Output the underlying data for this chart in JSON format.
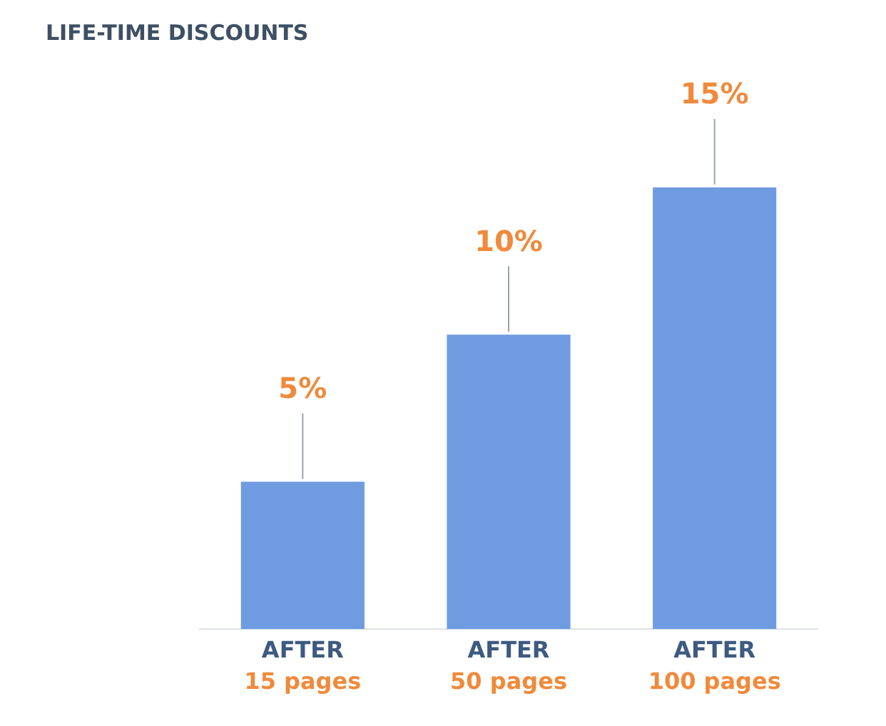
{
  "chart_data": {
    "type": "bar",
    "title": "LIFE-TIME DISCOUNTS",
    "categories": [
      "AFTER\n15 pages",
      "AFTER\n50 pages",
      "AFTER\n100 pages"
    ],
    "values": [
      5,
      10,
      15
    ],
    "color": "#6f9be0",
    "data_labels": true,
    "value_labels": [
      "5%",
      "10%",
      "15%"
    ],
    "grid": false,
    "legend": false
  }
}
